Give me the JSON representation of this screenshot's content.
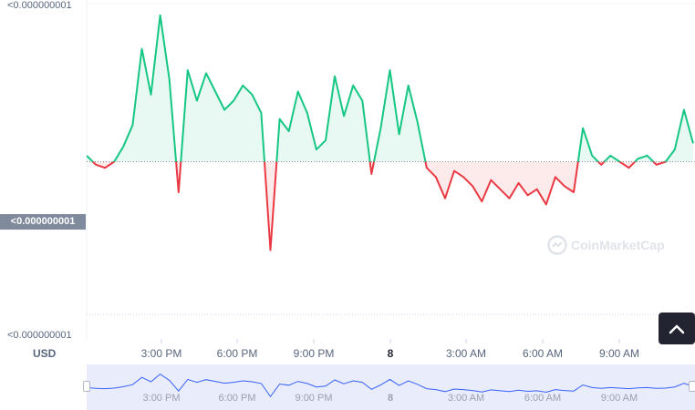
{
  "y_axis": {
    "top_label": "<0.000000001",
    "current_label": "<0.000000001",
    "bottom_label": "<0.000000001",
    "unit": "USD"
  },
  "x_axis": {
    "ticks": [
      "3:00 PM",
      "6:00 PM",
      "9:00 PM",
      "8",
      "3:00 AM",
      "6:00 AM",
      "9:00 AM"
    ]
  },
  "watermark": "CoinMarketCap",
  "colors": {
    "up": "#16c784",
    "down": "#ea3943",
    "navigator": "#3861fb"
  },
  "chart_data": {
    "type": "line",
    "title": "",
    "xlabel": "",
    "ylabel": "USD",
    "baseline_index": 0.5,
    "x": [
      "12:40 PM",
      "1:20 PM",
      "2:00 PM",
      "2:40 PM",
      "3:00 PM",
      "3:20 PM",
      "3:40 PM",
      "4:00 PM",
      "4:20 PM",
      "4:40 PM",
      "5:00 PM",
      "5:20 PM",
      "5:40 PM",
      "6:00 PM",
      "6:20 PM",
      "6:40 PM",
      "7:00 PM",
      "7:20 PM",
      "7:40 PM",
      "8:00 PM",
      "8:20 PM",
      "8:40 PM",
      "9:00 PM",
      "9:20 PM",
      "9:40 PM",
      "10:00 PM",
      "10:20 PM",
      "10:40 PM",
      "11:00 PM",
      "11:20 PM",
      "11:40 PM",
      "12:00 AM",
      "12:20 AM",
      "12:40 AM",
      "1:00 AM",
      "1:20 AM",
      "1:40 AM",
      "2:00 AM",
      "2:20 AM",
      "2:40 AM",
      "3:00 AM",
      "3:20 AM",
      "3:40 AM",
      "4:00 AM",
      "4:20 AM",
      "4:40 AM",
      "5:00 AM",
      "5:20 AM",
      "5:40 AM",
      "6:00 AM",
      "6:20 AM",
      "6:40 AM",
      "7:00 AM",
      "7:20 AM",
      "7:40 AM",
      "8:00 AM",
      "8:20 AM",
      "8:40 AM",
      "9:00 AM",
      "9:20 AM",
      "9:40 AM",
      "10:00 AM",
      "10:20 AM",
      "10:40 AM",
      "11:00 AM",
      "11:20 AM",
      "11:40 AM"
    ],
    "values": [
      0.52,
      0.49,
      0.48,
      0.5,
      0.55,
      0.62,
      0.87,
      0.72,
      0.98,
      0.77,
      0.4,
      0.8,
      0.7,
      0.79,
      0.73,
      0.67,
      0.7,
      0.75,
      0.72,
      0.66,
      0.21,
      0.64,
      0.6,
      0.73,
      0.66,
      0.54,
      0.57,
      0.78,
      0.65,
      0.75,
      0.7,
      0.46,
      0.61,
      0.8,
      0.59,
      0.75,
      0.63,
      0.48,
      0.45,
      0.38,
      0.47,
      0.45,
      0.42,
      0.37,
      0.44,
      0.41,
      0.38,
      0.43,
      0.39,
      0.41,
      0.36,
      0.45,
      0.42,
      0.4,
      0.61,
      0.52,
      0.49,
      0.52,
      0.5,
      0.48,
      0.51,
      0.52,
      0.49,
      0.5,
      0.54,
      0.67,
      0.56
    ]
  }
}
